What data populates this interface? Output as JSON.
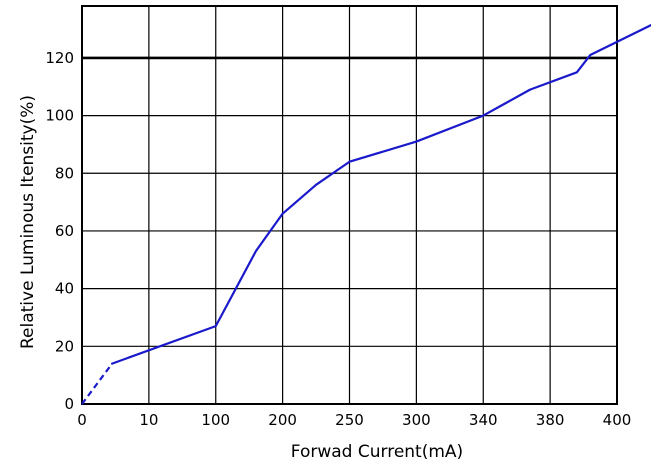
{
  "chart_data": {
    "type": "line",
    "xlabel": "Forwad Current(mA)",
    "ylabel": "Relative Luminous Itensity(%)",
    "x_tick_labels": [
      "0",
      "10",
      "100",
      "200",
      "250",
      "300",
      "340",
      "380",
      "400"
    ],
    "y_tick_labels": [
      "0",
      "20",
      "40",
      "60",
      "80",
      "100",
      "120"
    ],
    "ylim": [
      0,
      138
    ],
    "grid": true,
    "emphasized_gridline_y": 120,
    "x_scale": "non-uniform (tick labels at equally spaced positions)",
    "series": [
      {
        "color": "#1a1acc",
        "x": [
          0,
          5,
          10,
          60,
          100,
          150,
          200,
          250,
          300,
          340,
          370,
          380,
          400
        ],
        "y": [
          0,
          14,
          27,
          53,
          66,
          76,
          84,
          91,
          100,
          109,
          115,
          121,
          137
        ],
        "dashed_until_x": 5
      }
    ],
    "x_positions": {
      "0": 0,
      "5": 0.45,
      "10": 2,
      "60": 2.6,
      "100": 3,
      "150": 3.5,
      "200": 4,
      "250": 5,
      "300": 6,
      "340": 6.7,
      "370": 7.4,
      "380": 7.6,
      "400": 9
    }
  }
}
